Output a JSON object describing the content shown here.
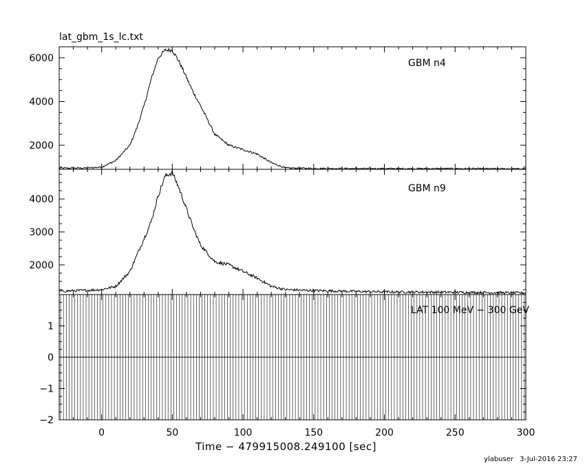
{
  "chart_data": {
    "type": "line",
    "title": "lat_gbm_1s_lc.txt",
    "xlabel": "Time − 479915008.249100 [sec]",
    "xlim": [
      -30,
      300
    ],
    "x_ticks": [
      0,
      50,
      100,
      150,
      200,
      250,
      300
    ],
    "panels": [
      {
        "name": "GBM n4",
        "ylim": [
          900,
          6500
        ],
        "y_ticks": [
          2000,
          4000,
          6000
        ],
        "x": [
          -30,
          -10,
          0,
          10,
          20,
          25,
          30,
          35,
          40,
          45,
          50,
          55,
          60,
          65,
          70,
          80,
          90,
          100,
          110,
          120,
          130,
          150,
          200,
          250,
          300
        ],
        "y": [
          950,
          960,
          1000,
          1300,
          2000,
          2800,
          3800,
          5000,
          6000,
          6350,
          6350,
          5800,
          5100,
          4400,
          3800,
          2500,
          2000,
          1800,
          1600,
          1200,
          960,
          940,
          930,
          930,
          920
        ]
      },
      {
        "name": "GBM n9",
        "ylim": [
          1100,
          4900
        ],
        "y_ticks": [
          2000,
          3000,
          4000
        ],
        "x": [
          -30,
          -10,
          0,
          10,
          20,
          25,
          30,
          35,
          40,
          45,
          50,
          55,
          60,
          65,
          70,
          80,
          90,
          100,
          110,
          120,
          130,
          150,
          200,
          250,
          300
        ],
        "y": [
          1200,
          1230,
          1250,
          1350,
          1800,
          2300,
          2800,
          3300,
          4100,
          4700,
          4800,
          4300,
          3700,
          3100,
          2600,
          2100,
          2000,
          1800,
          1600,
          1350,
          1250,
          1220,
          1180,
          1170,
          1150
        ]
      },
      {
        "name": "LAT 100 MeV − 300 GeV",
        "ylim": [
          -2,
          2
        ],
        "y_ticks": [
          -2,
          -1,
          0,
          1
        ],
        "value": 0,
        "errorbar_min": -2,
        "errorbar_max": 2
      }
    ],
    "grid": false,
    "legend": "none"
  },
  "footer": {
    "user": "ylabuser",
    "timestamp": "3-Jul-2016 23:27"
  }
}
